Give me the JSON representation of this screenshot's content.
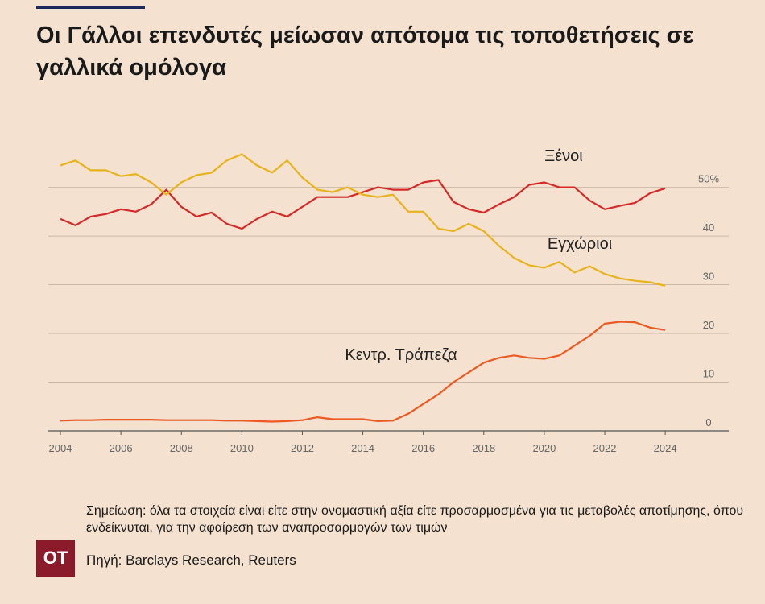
{
  "chart_data": {
    "type": "line",
    "title": "Οι Γάλλοι επενδυτές μείωσαν απότομα τις τοποθετήσεις σε γαλλικά ομόλογα",
    "note": "Σημείωση: όλα τα στοιχεία είναι είτε στην ονομαστική αξία είτε προσαρμοσμένα για τις μεταβολές αποτίμησης, όπου ενδείκνυται, για την αφαίρεση των αναπροσαρμογών των τιμών",
    "source": "Πηγή: Barclays Research, Reuters",
    "logo": "OT",
    "x": [
      2004,
      2004.5,
      2005,
      2005.5,
      2006,
      2006.5,
      2007,
      2007.5,
      2008,
      2008.5,
      2009,
      2009.5,
      2010,
      2010.5,
      2011,
      2011.5,
      2012,
      2012.5,
      2013,
      2013.5,
      2014,
      2014.5,
      2015,
      2015.5,
      2016,
      2016.5,
      2017,
      2017.5,
      2018,
      2018.5,
      2019,
      2019.5,
      2020,
      2020.5,
      2021,
      2021.5,
      2022,
      2022.5,
      2023,
      2023.5,
      2024
    ],
    "series": [
      {
        "name": "Ξένοι",
        "color": "#d42a2a",
        "values": [
          43.5,
          42.2,
          44,
          44.5,
          45.5,
          45,
          46.5,
          49.5,
          46,
          44,
          44.8,
          42.5,
          41.5,
          43.5,
          45,
          44,
          46,
          48,
          48,
          48,
          49,
          50,
          49.5,
          49.5,
          51,
          51.5,
          47,
          45.5,
          44.8,
          46.5,
          48,
          50.5,
          51,
          50,
          50,
          47.3,
          45.5,
          46.2,
          46.8,
          48.8,
          49.8
        ]
      },
      {
        "name": "Εγχώριοι",
        "color": "#e8b21a",
        "values": [
          54.5,
          55.5,
          53.5,
          53.5,
          52.3,
          52.7,
          51,
          48.5,
          51,
          52.5,
          53,
          55.5,
          56.8,
          54.5,
          53,
          55.5,
          52,
          49.5,
          49,
          50,
          48.5,
          48,
          48.5,
          45,
          45,
          41.5,
          41,
          42.5,
          41,
          38,
          35.5,
          34,
          33.5,
          34.7,
          32.5,
          33.8,
          32.2,
          31.3,
          30.8,
          30.5,
          29.8
        ]
      },
      {
        "name": "Κεντρ. Τράπεζα",
        "color": "#ec5a24",
        "values": [
          2.1,
          2.2,
          2.2,
          2.3,
          2.3,
          2.3,
          2.3,
          2.2,
          2.2,
          2.2,
          2.2,
          2.1,
          2.1,
          2.0,
          1.9,
          2.0,
          2.2,
          2.8,
          2.4,
          2.4,
          2.4,
          2.0,
          2.1,
          3.5,
          5.5,
          7.5,
          10,
          12,
          14,
          15,
          15.5,
          15,
          14.8,
          15.5,
          17.5,
          19.5,
          22,
          22.4,
          22.3,
          21.2,
          20.7
        ]
      }
    ],
    "xlim": [
      2003.6,
      2026.1
    ],
    "xticks": [
      2004,
      2006,
      2008,
      2010,
      2012,
      2014,
      2016,
      2018,
      2020,
      2022,
      2024
    ],
    "ylim": [
      0,
      62
    ],
    "yticks": [
      0,
      10,
      20,
      30,
      40,
      {
        "value": 50,
        "label": "50%"
      }
    ],
    "grid": true
  }
}
